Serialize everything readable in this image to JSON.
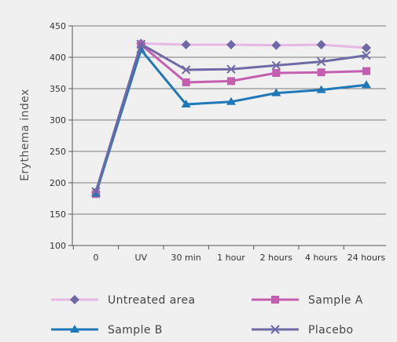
{
  "chart_data": {
    "type": "line",
    "title": "",
    "xlabel": "",
    "ylabel": "Erythema index",
    "categories": [
      "0",
      "UV",
      "30 min",
      "1 hour",
      "2 hours",
      "4 hours",
      "24 hours"
    ],
    "ylim": [
      100,
      450
    ],
    "yticks": [
      100,
      150,
      200,
      250,
      300,
      350,
      400,
      450
    ],
    "grid": "horizontal",
    "legend_position": "bottom",
    "series": [
      {
        "name": "Untreated area",
        "color": "#e6b8e3",
        "marker_color": "#6f6aa5",
        "marker": "diamond",
        "values": [
          185,
          422,
          420,
          420,
          419,
          420,
          415
        ]
      },
      {
        "name": "Sample A",
        "color": "#c45fb0",
        "marker_color": "#c45fb0",
        "marker": "square",
        "values": [
          182,
          420,
          360,
          362,
          375,
          376,
          378
        ]
      },
      {
        "name": "Sample B",
        "color": "#1f78b8",
        "marker_color": "#1f78b8",
        "marker": "triangle",
        "values": [
          183,
          412,
          325,
          329,
          343,
          348,
          356
        ]
      },
      {
        "name": "Placebo",
        "color": "#6f6aa5",
        "marker_color": "#6f6aa5",
        "marker": "x",
        "values": [
          186,
          421,
          380,
          381,
          387,
          393,
          403
        ]
      }
    ]
  }
}
